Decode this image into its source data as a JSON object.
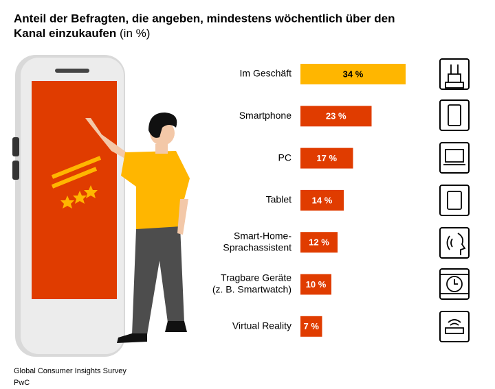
{
  "chart_data": {
    "type": "bar",
    "title_lines": [
      "Anteil der Befragten, die angeben, mindestens wöchentlich über den",
      "Kanal einzukaufen"
    ],
    "unit": "(in %)",
    "categories": [
      [
        "Im Geschäft"
      ],
      [
        "Smartphone"
      ],
      [
        "PC"
      ],
      [
        "Tablet"
      ],
      [
        "Smart-Home-",
        "Sprachassistent"
      ],
      [
        "Tragbare Geräte",
        "(z. B. Smartwatch)"
      ],
      [
        "Virtual Reality"
      ]
    ],
    "values": [
      34,
      23,
      17,
      14,
      12,
      10,
      7
    ],
    "value_labels": [
      "34 %",
      "23 %",
      "17 %",
      "14 %",
      "12 %",
      "10 %",
      "7 %"
    ],
    "colors": [
      "#ffb600",
      "#e03c00",
      "#e03c00",
      "#e03c00",
      "#e03c00",
      "#e03c00",
      "#e03c00"
    ],
    "source": [
      "Global Consumer Insights Survey",
      "PwC"
    ]
  }
}
